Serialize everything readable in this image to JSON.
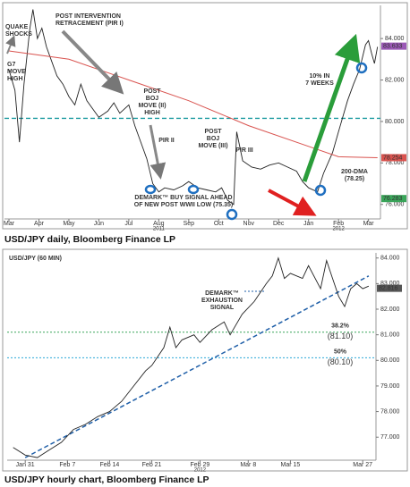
{
  "chart_data": [
    {
      "type": "line",
      "caption": "USD/JPY daily, Bloomberg Finance LP",
      "xlim": [
        -0.15,
        12.4
      ],
      "ylim": [
        75.3,
        85.6
      ],
      "xticks": [
        {
          "value": 0,
          "label": "Mar"
        },
        {
          "value": 1,
          "label": "Apr"
        },
        {
          "value": 2,
          "label": "May"
        },
        {
          "value": 3,
          "label": "Jun"
        },
        {
          "value": 4,
          "label": "Jul"
        },
        {
          "value": 5,
          "label": "Aug"
        },
        {
          "value": 6,
          "label": "Sep"
        },
        {
          "value": 7,
          "label": "Oct"
        },
        {
          "value": 8,
          "label": "Nov"
        },
        {
          "value": 9,
          "label": "Dec"
        },
        {
          "value": 10,
          "label": "Jan"
        },
        {
          "value": 11,
          "label": "Feb"
        },
        {
          "value": 12,
          "label": "Mar"
        }
      ],
      "year_labels": [
        {
          "value": 5,
          "label": "2011"
        },
        {
          "value": 11,
          "label": "2012"
        }
      ],
      "yticks": [
        {
          "value": 84,
          "label": "84.000"
        },
        {
          "value": 82,
          "label": "82.000"
        },
        {
          "value": 80,
          "label": "80.000"
        },
        {
          "value": 78,
          "label": "78.000"
        },
        {
          "value": 76,
          "label": "76.000"
        }
      ],
      "series": [
        {
          "color": "#222222",
          "x": [
            0,
            0.2,
            0.35,
            0.5,
            0.7,
            0.8,
            0.95,
            1.1,
            1.25,
            1.4,
            1.6,
            1.8,
            2.0,
            2.2,
            2.4,
            2.6,
            2.8,
            3.0,
            3.3,
            3.5,
            3.7,
            4.0,
            4.2,
            4.4,
            4.6,
            4.8,
            5.0,
            5.2,
            5.5,
            5.8,
            6.0,
            6.3,
            6.6,
            6.9,
            7.1,
            7.3,
            7.5,
            7.6,
            7.8,
            8.1,
            8.4,
            8.7,
            9.0,
            9.3,
            9.6,
            9.8,
            10.0,
            10.3,
            10.5,
            10.8,
            11.0,
            11.3,
            11.5,
            11.7,
            11.9,
            12.0,
            12.1,
            12.2,
            12.3
          ],
          "values": [
            82.5,
            81.5,
            79.0,
            81.8,
            84.5,
            85.4,
            84.0,
            84.5,
            83.6,
            83.0,
            82.2,
            81.8,
            81.2,
            80.8,
            81.8,
            81.0,
            80.6,
            80.2,
            80.5,
            80.9,
            80.4,
            80.8,
            79.8,
            79.0,
            78.2,
            77.0,
            76.6,
            76.8,
            76.7,
            76.9,
            77.1,
            76.8,
            76.7,
            76.6,
            76.8,
            76.2,
            76.0,
            79.5,
            78.1,
            77.8,
            77.7,
            77.9,
            78.0,
            77.8,
            77.6,
            77.1,
            76.8,
            76.6,
            77.5,
            78.5,
            79.5,
            81.0,
            81.8,
            82.5,
            83.7,
            83.9,
            83.3,
            82.8,
            83.6
          ]
        },
        {
          "color": "#d9534f",
          "x": [
            0,
            2,
            4,
            6,
            8,
            10,
            11,
            12.3
          ],
          "values": [
            83.4,
            83.0,
            82.0,
            81.0,
            79.8,
            78.8,
            78.3,
            78.25
          ]
        }
      ],
      "levels": [
        {
          "value": 80.15,
          "color": "#1a9aa0"
        }
      ],
      "badges": [
        {
          "value": 83.633,
          "color": "#9b59b6"
        },
        {
          "value": 78.254,
          "color": "#d9534f"
        },
        {
          "value": 76.283,
          "color": "#3aa55a"
        }
      ],
      "annotations": [
        {
          "lines": [
            "QUAKE",
            "SHOCKS"
          ],
          "color": "#555555"
        },
        {
          "lines": [
            "G7",
            "MOVE",
            "HIGH"
          ],
          "color": "#555555"
        },
        {
          "lines": [
            "POST INTERVENTION",
            "RETRACEMENT (PIR I)"
          ],
          "color": "#555555"
        },
        {
          "lines": [
            "POST",
            "BOJ",
            "MOVE (II)",
            "HIGH"
          ],
          "color": "#555555"
        },
        {
          "lines": [
            "PIR II"
          ],
          "color": "#555555"
        },
        {
          "lines": [
            "POST",
            "BOJ",
            "MOVE (III)"
          ],
          "color": "#555555"
        },
        {
          "lines": [
            "PIR III"
          ],
          "color": "#555555"
        },
        {
          "lines": [
            "DEMARK™ BUY SIGNAL AHEAD",
            "OF NEW POST WWII LOW (75.35)"
          ],
          "color": "#1f5fa8"
        },
        {
          "lines": [
            "10% IN",
            "7 WEEKS"
          ],
          "color": "#2a9d3a"
        },
        {
          "lines": [
            "200-DMA",
            "(78.25)"
          ],
          "color": "#d9534f"
        }
      ]
    },
    {
      "type": "line",
      "title": "USD/JPY (60 MIN)",
      "caption": "USD/JPY hourly chart, Bloomberg Finance LP",
      "xlim": [
        -3,
        58.2
      ],
      "ylim": [
        76.1,
        84.2
      ],
      "xticks": [
        {
          "value": 0,
          "label": "Jan 31"
        },
        {
          "value": 7,
          "label": "Feb 7"
        },
        {
          "value": 14,
          "label": "Feb 14"
        },
        {
          "value": 21,
          "label": "Feb 21"
        },
        {
          "value": 29,
          "label": "Feb 29"
        },
        {
          "value": 37,
          "label": "Mar 8"
        },
        {
          "value": 44,
          "label": "Mar 15"
        },
        {
          "value": 56,
          "label": "Mar 27"
        }
      ],
      "year_labels": [
        {
          "value": 29,
          "label": "2012"
        }
      ],
      "yticks": [
        {
          "value": 84,
          "label": "84.000"
        },
        {
          "value": 83,
          "label": "83.000"
        },
        {
          "value": 82,
          "label": "82.000"
        },
        {
          "value": 81,
          "label": "81.000"
        },
        {
          "value": 80,
          "label": "80.000"
        },
        {
          "value": 79,
          "label": "79.000"
        },
        {
          "value": 78,
          "label": "78.000"
        },
        {
          "value": 77,
          "label": "77.000"
        }
      ],
      "series": [
        {
          "color": "#222222",
          "x": [
            -2,
            0,
            2,
            4,
            6,
            8,
            10,
            12,
            14,
            16,
            18,
            20,
            21,
            23,
            24,
            25,
            26,
            28,
            29,
            31,
            33,
            34,
            36,
            38,
            40,
            41,
            42,
            43,
            44,
            46,
            47,
            49,
            50,
            51,
            52,
            53,
            54,
            55,
            56,
            57
          ],
          "values": [
            76.6,
            76.3,
            76.2,
            76.5,
            76.8,
            77.3,
            77.5,
            77.8,
            78.0,
            78.4,
            79.0,
            79.6,
            79.8,
            80.5,
            81.3,
            80.5,
            80.8,
            81.0,
            80.7,
            81.2,
            81.5,
            81.0,
            81.8,
            82.3,
            83.0,
            83.3,
            84.0,
            83.2,
            83.4,
            83.2,
            83.7,
            82.8,
            83.9,
            83.2,
            82.5,
            82.1,
            82.8,
            83.0,
            82.8,
            82.9
          ]
        }
      ],
      "trendline": {
        "color": "#1f5fa8",
        "x": [
          0,
          57
        ],
        "values": [
          76.2,
          83.3
        ]
      },
      "fib_levels": [
        {
          "name": "38.2%",
          "value": 81.1,
          "label": "(81.10)",
          "color": "#3aa55a"
        },
        {
          "name": "50%",
          "value": 80.1,
          "label": "(80.10)",
          "color": "#2aa7d8"
        }
      ],
      "badges": [
        {
          "value": 82.816,
          "color": "#555555"
        }
      ],
      "annotations": [
        {
          "lines": [
            "DEMARK™",
            "EXHAUSTION",
            "SIGNAL"
          ],
          "color": "#1f5fa8"
        }
      ]
    }
  ]
}
